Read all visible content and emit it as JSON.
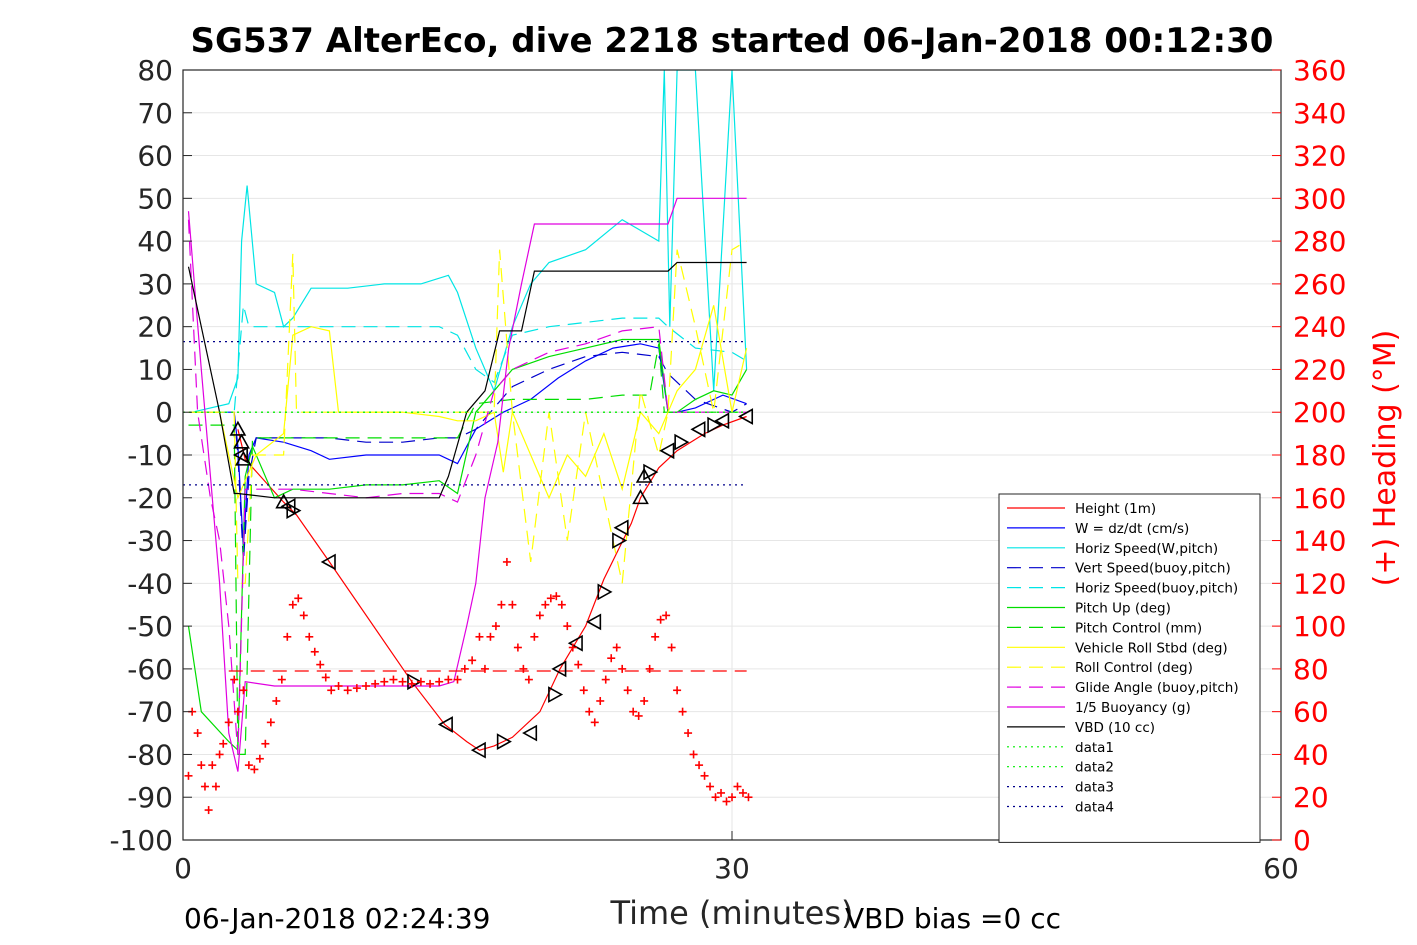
{
  "chart_data": {
    "type": "line",
    "title": "SG537 AlterEco, dive 2218 started 06-Jan-2018 00:12:30",
    "xlabel": "Time (minutes)",
    "ylabel": "",
    "y2label": "(+) Heading (°M)",
    "xlim": [
      0,
      60
    ],
    "ylim": [
      -100,
      80
    ],
    "y2lim": [
      0,
      360
    ],
    "xticks": [
      0,
      30,
      60
    ],
    "yticks": [
      80,
      70,
      60,
      50,
      40,
      30,
      20,
      10,
      0,
      -10,
      -20,
      -30,
      -40,
      -50,
      -60,
      -70,
      -80,
      -90,
      -100
    ],
    "y2ticks": [
      360,
      340,
      320,
      300,
      280,
      260,
      240,
      220,
      200,
      180,
      160,
      140,
      120,
      100,
      80,
      60,
      40,
      20,
      0
    ],
    "grid": true,
    "legend_position": "lower-right",
    "colors": {
      "height": "#ff0000",
      "w": "#0000ff",
      "horiz_speed": "#00e5e5",
      "pitch": "#00dd00",
      "roll": "#ffff00",
      "glide": "#e000e0",
      "vbd": "#000000",
      "dotted_green": "#00ee00",
      "dotted_blue": "#00008b",
      "heading_axis": "#ff0000"
    },
    "series": [
      {
        "name": "Height (1m)",
        "style": "solid",
        "color": "#ff0000",
        "x": [
          3.0,
          3.4,
          5.5,
          6.2,
          8.0,
          12.5,
          14.3,
          15.5,
          16.2,
          17.0,
          18.0,
          19.5,
          20.6,
          22.0,
          23.0,
          24.5,
          25.0,
          26.0,
          27.0,
          28.5,
          29.5,
          30.8
        ],
        "y": [
          -4,
          -11,
          -21,
          -24,
          -35,
          -63,
          -73,
          -77,
          -79,
          -78,
          -76,
          -70,
          -60,
          -50,
          -39,
          -26,
          -20,
          -13,
          -9,
          -5,
          -3,
          -1
        ]
      },
      {
        "name": "W = dz/dt (cm/s)",
        "style": "solid",
        "color": "#0000ff",
        "x": [
          0.5,
          2.8,
          3.0,
          3.3,
          3.6,
          4.0,
          5.5,
          7.0,
          8.0,
          10,
          12,
          14,
          15,
          16,
          17.5,
          19,
          20.5,
          22,
          23.5,
          25,
          26.0,
          26.5,
          27.0,
          28.0,
          29.5,
          30.8
        ],
        "y": [
          0,
          0,
          -8,
          -32,
          -10,
          -6,
          -7,
          -9,
          -11,
          -10,
          -10,
          -10,
          -12,
          -4,
          0,
          3,
          8,
          12,
          15,
          16,
          15,
          0,
          0,
          1,
          4,
          2
        ]
      },
      {
        "name": "Horiz Speed(W,pitch)",
        "style": "solid",
        "color": "#00e5e5",
        "x": [
          0.5,
          2.5,
          3.0,
          3.2,
          3.5,
          4.0,
          5.0,
          5.5,
          6.0,
          7.0,
          9.0,
          11,
          13,
          14.5,
          15,
          16,
          17,
          18,
          19,
          20,
          22,
          24,
          26.0,
          26.3,
          26.6,
          27.0,
          28.0,
          29.0,
          30.0,
          30.8
        ],
        "y": [
          0,
          2,
          8,
          40,
          53,
          30,
          28,
          20,
          22,
          29,
          29,
          30,
          30,
          32,
          28,
          15,
          5,
          20,
          30,
          35,
          38,
          45,
          40,
          80,
          20,
          80,
          80,
          5,
          80,
          10
        ]
      },
      {
        "name": "Vert Speed(buoy,pitch)",
        "style": "dashed",
        "color": "#0000cc",
        "x": [
          0.5,
          2.8,
          3.0,
          3.3,
          3.6,
          4.0,
          6.0,
          8.0,
          10,
          12,
          14,
          15,
          16,
          18,
          20,
          22,
          24,
          26.0,
          26.5,
          28.0,
          30.0,
          30.8
        ],
        "y": [
          0,
          0,
          -10,
          -35,
          -15,
          -6,
          -6,
          -6,
          -7,
          -7,
          -6,
          -6,
          -4,
          6,
          10,
          13,
          14,
          13,
          9,
          3,
          0,
          2
        ]
      },
      {
        "name": "Horiz Speed(buoy,pitch)",
        "style": "dashed",
        "color": "#00e5e5",
        "x": [
          0.5,
          2.8,
          3.3,
          3.6,
          4.0,
          6,
          8,
          10,
          12,
          14,
          15,
          16,
          17,
          18,
          20,
          22,
          24,
          26.0,
          26.5,
          28.0,
          30.0,
          30.8
        ],
        "y": [
          0,
          0,
          25,
          20,
          20,
          20,
          20,
          20,
          20,
          20,
          18,
          10,
          7,
          18,
          20,
          21,
          22,
          22,
          20,
          15,
          14,
          12
        ]
      },
      {
        "name": "Pitch Up (deg)",
        "style": "solid",
        "color": "#00dd00",
        "x": [
          0.3,
          1.0,
          2.5,
          3.0,
          3.4,
          3.8,
          5.0,
          6,
          8,
          10,
          12,
          14,
          15,
          16,
          17,
          18,
          20,
          22,
          24,
          26.0,
          26.5,
          27.0,
          28.0,
          29.0,
          30.0,
          30.8
        ],
        "y": [
          -50,
          -70,
          -77,
          -79,
          -15,
          -8,
          -20,
          -18,
          -18,
          -17,
          -17,
          -16,
          -19,
          0,
          5,
          10,
          13,
          15,
          17,
          17,
          0,
          0,
          3,
          5,
          4,
          10
        ]
      },
      {
        "name": "Pitch Control (mm)",
        "style": "dashed",
        "color": "#00dd00",
        "x": [
          0.3,
          2.8,
          3.0,
          3.4,
          3.8,
          6,
          8,
          10,
          12,
          14,
          15,
          16,
          18,
          20,
          22,
          24,
          25.5,
          26.0,
          26.3,
          28.0,
          30.0,
          30.8
        ],
        "y": [
          -3,
          -3,
          -80,
          -80,
          -6,
          -6,
          -6,
          -6,
          -6,
          -6,
          -6,
          2,
          3,
          3,
          3,
          4,
          4,
          16,
          0,
          0,
          0,
          0
        ]
      },
      {
        "name": "Vehicle Roll Stbd (deg)",
        "style": "solid",
        "color": "#ffff00",
        "x": [
          0.3,
          2.0,
          3.0,
          4.0,
          5.5,
          6.0,
          7.0,
          8.0,
          8.5,
          10,
          12,
          14,
          15,
          16,
          17.0,
          17.5,
          18.0,
          19.0,
          20.0,
          21.0,
          22.0,
          23.0,
          24.0,
          25.0,
          26.0,
          26.5,
          27.0,
          28.0,
          29.0,
          30.0,
          30.8
        ],
        "y": [
          0,
          0,
          -20,
          -10,
          -5,
          18,
          20,
          19,
          0,
          0,
          0,
          -1,
          -2,
          -2,
          0,
          -14,
          0,
          -10,
          -20,
          -10,
          -15,
          -5,
          -18,
          0,
          -5,
          0,
          5,
          10,
          25,
          0,
          15
        ]
      },
      {
        "name": "Roll Control (deg)",
        "style": "dashed",
        "color": "#ffff00",
        "x": [
          0.3,
          2.8,
          3.0,
          3.4,
          3.8,
          5.5,
          6.0,
          6.2,
          8.0,
          8.5,
          10,
          14,
          15,
          16,
          17.0,
          17.3,
          18.0,
          19.0,
          20.0,
          21.0,
          22.0,
          23.0,
          24.0,
          25.0,
          26.0,
          26.5,
          27.0,
          28.0,
          29.0,
          30.0,
          30.8
        ],
        "y": [
          0,
          0,
          -40,
          -40,
          -10,
          -10,
          37,
          0,
          0,
          0,
          0,
          0,
          0,
          0,
          0,
          38,
          0,
          -35,
          0,
          -30,
          0,
          -20,
          -40,
          5,
          -10,
          0,
          38,
          20,
          0,
          38,
          40
        ]
      },
      {
        "name": "Glide Angle (buoy,pitch)",
        "style": "dashed",
        "color": "#e000e0",
        "x": [
          0.3,
          0.8,
          1.5,
          2.0,
          2.5,
          3.0,
          3.4,
          3.8,
          6,
          8,
          10,
          12,
          14,
          15,
          16,
          17,
          18,
          20,
          22,
          24,
          26.0,
          26.5,
          28.0,
          30.0,
          30.8
        ],
        "y": [
          45,
          0,
          -20,
          -30,
          -50,
          -80,
          -18,
          -18,
          -18,
          -19,
          -20,
          -19,
          -19,
          -21,
          -10,
          5,
          10,
          14,
          16,
          19,
          20,
          0,
          0,
          0,
          0
        ]
      },
      {
        "name": "1/5 Buoyancy (g)",
        "style": "solid",
        "color": "#e000e0",
        "x": [
          0.3,
          1.0,
          2.0,
          2.5,
          3.0,
          3.4,
          5.0,
          10,
          14,
          14.8,
          15.5,
          16.0,
          16.5,
          17.2,
          17.8,
          18.5,
          19.2,
          20,
          24,
          26.5,
          27.0,
          30.8
        ],
        "y": [
          47,
          10,
          -40,
          -75,
          -84,
          -63,
          -64,
          -64,
          -64,
          -63,
          -50,
          -40,
          -20,
          -7,
          15,
          30,
          44,
          44,
          44,
          44,
          50,
          50
        ]
      },
      {
        "name": "VBD (10 cc)",
        "style": "solid",
        "color": "#000000",
        "x": [
          0.3,
          1.0,
          2.0,
          2.8,
          3.0,
          5.0,
          10,
          14.0,
          14.5,
          15.5,
          16.5,
          17.3,
          18.5,
          19.2,
          20,
          24,
          26.5,
          27.0,
          30.8
        ],
        "y": [
          34,
          20,
          0,
          -19,
          -19,
          -20,
          -20,
          -20,
          -15,
          0,
          5,
          19,
          19,
          33,
          33,
          33,
          33,
          35,
          35
        ]
      },
      {
        "name": "data1",
        "style": "dotted",
        "color": "#00ee00",
        "x": [
          0,
          30.8
        ],
        "y": [
          0,
          0
        ]
      },
      {
        "name": "data2",
        "style": "dotted",
        "color": "#00ee00",
        "x": [
          0,
          30.8
        ],
        "y": [
          0,
          0
        ]
      },
      {
        "name": "data3",
        "style": "dotted",
        "color": "#00008b",
        "x": [
          0,
          30.8
        ],
        "y": [
          16.5,
          16.5
        ]
      },
      {
        "name": "data4",
        "style": "dotted",
        "color": "#00008b",
        "x": [
          0,
          30.8
        ],
        "y": [
          -17,
          -17
        ]
      }
    ],
    "reference_lines": [
      {
        "style": "dashed",
        "color": "#ff0000",
        "y": -60.5,
        "x": [
          2.5,
          30.8
        ]
      }
    ],
    "markers": {
      "up_triangles": [
        [
          3.0,
          -4
        ],
        [
          3.2,
          -7
        ],
        [
          3.3,
          -11
        ],
        [
          5.5,
          -21
        ],
        [
          25.0,
          -20
        ],
        [
          25.2,
          -15
        ]
      ],
      "left_triangles": [
        [
          3.2,
          -10
        ],
        [
          5.8,
          -22
        ],
        [
          8.0,
          -35
        ],
        [
          14.4,
          -73
        ],
        [
          16.2,
          -79
        ],
        [
          19.0,
          -75
        ],
        [
          20.6,
          -60
        ],
        [
          21.5,
          -54
        ],
        [
          22.5,
          -49
        ],
        [
          24.0,
          -27
        ],
        [
          26.5,
          -9
        ],
        [
          28.2,
          -4
        ],
        [
          29.5,
          -2
        ],
        [
          30.8,
          -1
        ]
      ],
      "right_triangles": [
        [
          6.0,
          -23
        ],
        [
          12.6,
          -63
        ],
        [
          17.5,
          -77
        ],
        [
          20.3,
          -66
        ],
        [
          23.0,
          -42
        ],
        [
          23.8,
          -30
        ],
        [
          25.5,
          -14
        ],
        [
          27.2,
          -7
        ],
        [
          29.0,
          -3
        ]
      ]
    },
    "heading": {
      "axis": "right",
      "x": [
        0.3,
        0.5,
        0.8,
        1.0,
        1.2,
        1.4,
        1.6,
        1.8,
        2.0,
        2.2,
        2.5,
        2.8,
        3.0,
        3.3,
        3.6,
        3.9,
        4.2,
        4.5,
        4.8,
        5.1,
        5.4,
        5.7,
        6.0,
        6.3,
        6.6,
        6.9,
        7.2,
        7.5,
        7.8,
        8.1,
        8.5,
        9,
        9.5,
        10,
        10.5,
        11,
        11.5,
        12,
        12.5,
        13,
        13.5,
        14,
        14.5,
        15,
        15.4,
        15.8,
        16.2,
        16.5,
        16.8,
        17.1,
        17.4,
        17.7,
        18.0,
        18.3,
        18.6,
        18.9,
        19.2,
        19.5,
        19.8,
        20.1,
        20.4,
        20.7,
        21.0,
        21.3,
        21.6,
        21.9,
        22.2,
        22.5,
        22.8,
        23.1,
        23.4,
        23.7,
        24.0,
        24.3,
        24.6,
        24.9,
        25.2,
        25.5,
        25.8,
        26.1,
        26.4,
        26.7,
        27.0,
        27.3,
        27.6,
        27.9,
        28.2,
        28.5,
        28.8,
        29.1,
        29.4,
        29.7,
        30.0,
        30.3,
        30.6,
        30.9
      ],
      "y": [
        30,
        60,
        50,
        35,
        25,
        14,
        35,
        25,
        40,
        45,
        55,
        75,
        60,
        70,
        35,
        33,
        38,
        45,
        55,
        65,
        75,
        95,
        110,
        113,
        105,
        95,
        88,
        82,
        76,
        70,
        72,
        70,
        71,
        72,
        73,
        74,
        75,
        74,
        73,
        74,
        73,
        74,
        75,
        75,
        80,
        84,
        95,
        80,
        95,
        100,
        110,
        130,
        110,
        90,
        80,
        75,
        95,
        105,
        110,
        113,
        114,
        110,
        100,
        90,
        82,
        70,
        60,
        55,
        65,
        75,
        85,
        90,
        80,
        70,
        60,
        58,
        65,
        80,
        95,
        103,
        105,
        90,
        70,
        60,
        50,
        40,
        35,
        30,
        25,
        20,
        22,
        18,
        20,
        25,
        22,
        20
      ]
    },
    "annotations": [
      {
        "text": "06-Jan-2018 02:24:39",
        "position": "bottom-left"
      },
      {
        "text": "VBD bias =0 cc",
        "position": "bottom-center"
      }
    ]
  }
}
